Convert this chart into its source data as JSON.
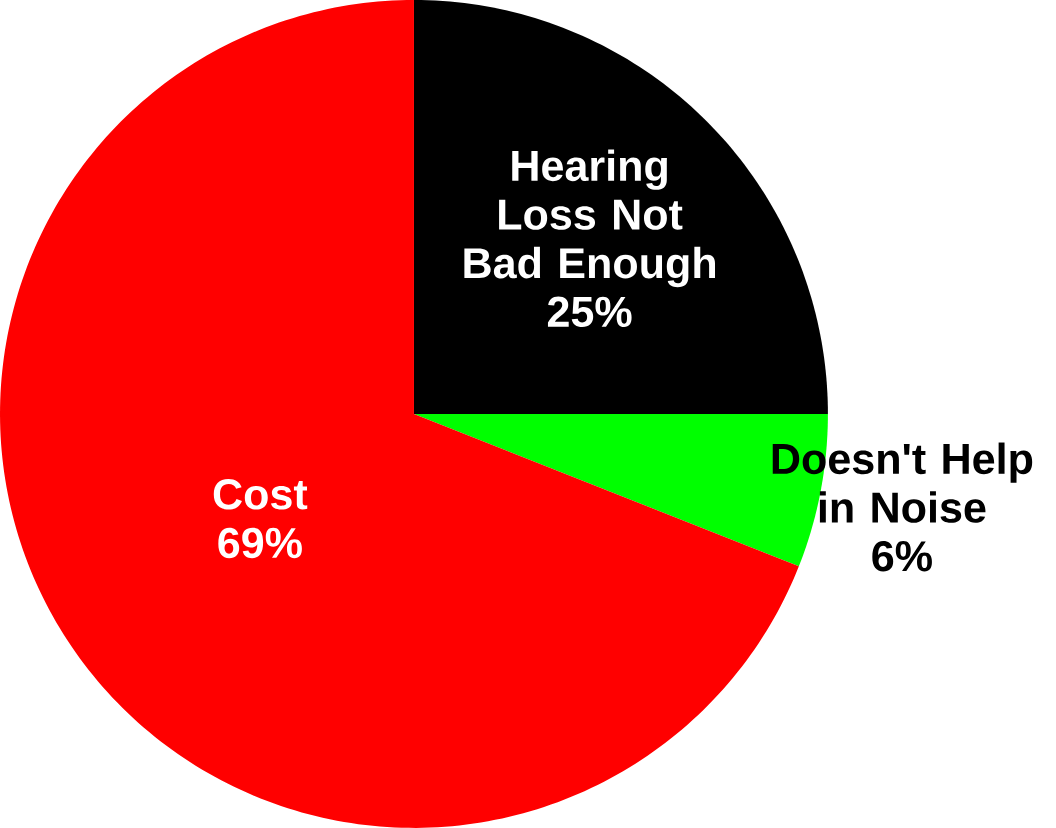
{
  "chart_data": {
    "type": "pie",
    "categories": [
      "Hearing Loss Not Bad Enough",
      "Doesn't Help in Noise",
      "Cost"
    ],
    "values": [
      25,
      6,
      69
    ],
    "value_labels": [
      "25%",
      "6%",
      "69%"
    ],
    "colors": [
      "#000000",
      "#00ff00",
      "#ff0000"
    ]
  }
}
